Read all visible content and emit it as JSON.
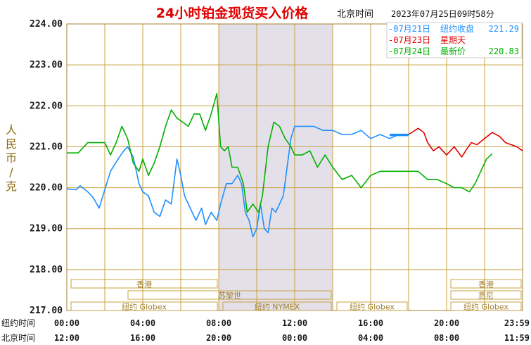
{
  "header": {
    "title": "24小时铂金现货买入价格",
    "timezone_label": "北京时间",
    "timestamp": "2023年07月25日09时58分"
  },
  "legend": [
    {
      "date": "07月21日",
      "label": "纽约收盘",
      "value": "221.29",
      "color": "#1e8fff"
    },
    {
      "date": "07月23日",
      "label": "星期天",
      "value": "",
      "color": "#e00000"
    },
    {
      "date": "07月24日",
      "label": "最新价",
      "value": "220.83",
      "color": "#00b000"
    }
  ],
  "ylabel_chars": [
    "人",
    "民",
    "币",
    "/",
    "克"
  ],
  "row_labels": {
    "ny": "纽约时间",
    "bj": "北京时间"
  },
  "x_ticks_ny": [
    "00:00",
    "04:00",
    "08:00",
    "12:00",
    "16:00",
    "20:00",
    "23:59"
  ],
  "x_ticks_bj": [
    "12:00",
    "16:00",
    "20:00",
    "00:00",
    "04:00",
    "08:00",
    "11:59"
  ],
  "sessions": [
    {
      "label": "香港",
      "start": 0,
      "end": 8,
      "row": 0
    },
    {
      "label": "苏黎世",
      "start": 3,
      "end": 14,
      "row": 1
    },
    {
      "label": "纽约 Globex",
      "start": 0,
      "end": 8,
      "row": 2
    },
    {
      "label": "纽约 NYMEX",
      "start": 8,
      "end": 14,
      "row": 2
    },
    {
      "label": "纽约 Globex",
      "start": 14,
      "end": 18,
      "row": 2
    },
    {
      "label": "香港",
      "start": 20,
      "end": 24,
      "row": 0
    },
    {
      "label": "悉尼",
      "start": 20,
      "end": 24,
      "row": 1
    },
    {
      "label": "纽约 Globex",
      "start": 20,
      "end": 24,
      "row": 2
    }
  ],
  "colors": {
    "grid": "#c8a040",
    "shade": "#e4e0ea",
    "axis_text": "#1a1a1a",
    "title": "#e00000",
    "ylabel": "#8a6a10"
  },
  "chart_data": {
    "type": "line",
    "title": "24小时铂金现货买入价格",
    "ylim": [
      217,
      224
    ],
    "yticks": [
      "217.00",
      "218.00",
      "219.00",
      "220.00",
      "221.00",
      "222.00",
      "223.00",
      "224.00"
    ],
    "xlim_hours": [
      0,
      24
    ],
    "shaded_hours": [
      8,
      14
    ],
    "grid": true,
    "legend_position": "top-right",
    "series": [
      {
        "name": "07月21日",
        "color": "#1e8fff",
        "x": [
          0,
          0.5,
          0.7,
          1.1,
          1.4,
          1.7,
          2.0,
          2.3,
          2.7,
          3.0,
          3.2,
          3.5,
          3.8,
          4.0,
          4.3,
          4.6,
          4.9,
          5.2,
          5.5,
          5.8,
          6.0,
          6.2,
          6.5,
          6.8,
          7.1,
          7.3,
          7.6,
          7.9,
          8.1,
          8.4,
          8.7,
          9.0,
          9.2,
          9.4,
          9.6,
          9.8,
          10.0,
          10.2,
          10.4,
          10.6,
          10.8,
          11.0,
          11.2,
          11.4,
          11.6,
          11.8,
          12.0,
          12.5,
          13.0,
          13.5,
          14.0,
          14.5,
          15.0,
          15.5,
          16.0,
          16.5,
          17.0,
          17.5,
          18.0
        ],
        "y": [
          219.97,
          219.95,
          220.05,
          219.9,
          219.75,
          219.5,
          219.95,
          220.4,
          220.7,
          220.9,
          221.0,
          220.75,
          220.1,
          219.9,
          219.8,
          219.4,
          219.3,
          219.7,
          219.6,
          220.7,
          220.3,
          219.8,
          219.5,
          219.2,
          219.5,
          219.1,
          219.4,
          219.2,
          219.6,
          220.1,
          220.1,
          220.3,
          220.1,
          219.4,
          219.2,
          218.8,
          219.0,
          219.6,
          219.0,
          218.9,
          219.5,
          219.4,
          219.6,
          219.8,
          220.5,
          221.2,
          221.5,
          221.5,
          221.5,
          221.4,
          221.4,
          221.3,
          221.3,
          221.4,
          221.2,
          221.3,
          221.2,
          221.3,
          221.29
        ]
      },
      {
        "name": "07月23日",
        "color": "#e00000",
        "x": [
          18.0,
          18.5,
          18.8,
          19.0,
          19.3,
          19.6,
          20.0,
          20.4,
          20.8,
          21.0,
          21.3,
          21.6,
          22.0,
          22.4,
          22.8,
          23.1,
          23.4,
          23.7,
          24.0
        ],
        "y": [
          221.3,
          221.45,
          221.35,
          221.1,
          220.9,
          221.0,
          220.8,
          221.0,
          220.75,
          220.9,
          221.1,
          221.05,
          221.2,
          221.35,
          221.25,
          221.1,
          221.05,
          221.0,
          220.9
        ]
      },
      {
        "name": "07月24日",
        "color": "#00b000",
        "x": [
          0,
          0.6,
          1.1,
          1.5,
          2.0,
          2.3,
          2.6,
          2.9,
          3.2,
          3.5,
          3.8,
          4.0,
          4.3,
          4.6,
          4.9,
          5.2,
          5.5,
          5.8,
          6.1,
          6.4,
          6.7,
          7.0,
          7.3,
          7.6,
          7.9,
          8.1,
          8.3,
          8.5,
          8.7,
          9.0,
          9.3,
          9.5,
          9.8,
          10.1,
          10.3,
          10.6,
          10.9,
          11.2,
          11.5,
          11.8,
          12.0,
          12.4,
          12.8,
          13.2,
          13.6,
          14.0,
          14.5,
          15.0,
          15.5,
          16.0,
          16.5,
          17.0,
          17.5,
          18.0,
          18.5,
          19.0,
          19.5,
          20.0,
          20.4,
          20.8,
          21.2,
          21.5,
          21.8,
          22.1,
          22.4
        ],
        "y": [
          220.85,
          220.85,
          221.1,
          221.1,
          221.1,
          220.8,
          221.1,
          221.5,
          221.2,
          220.6,
          220.4,
          220.7,
          220.3,
          220.6,
          221.0,
          221.5,
          221.9,
          221.7,
          221.6,
          221.5,
          221.8,
          221.8,
          221.4,
          221.8,
          222.3,
          221.0,
          220.9,
          221.0,
          220.5,
          220.5,
          220.1,
          219.4,
          219.6,
          219.4,
          219.8,
          221.0,
          221.6,
          221.5,
          221.2,
          221.0,
          220.8,
          220.8,
          220.9,
          220.5,
          220.8,
          220.5,
          220.2,
          220.3,
          220.0,
          220.3,
          220.4,
          220.4,
          220.4,
          220.4,
          220.4,
          220.2,
          220.2,
          220.1,
          220.0,
          220.0,
          219.9,
          220.1,
          220.4,
          220.7,
          220.83
        ]
      }
    ]
  }
}
